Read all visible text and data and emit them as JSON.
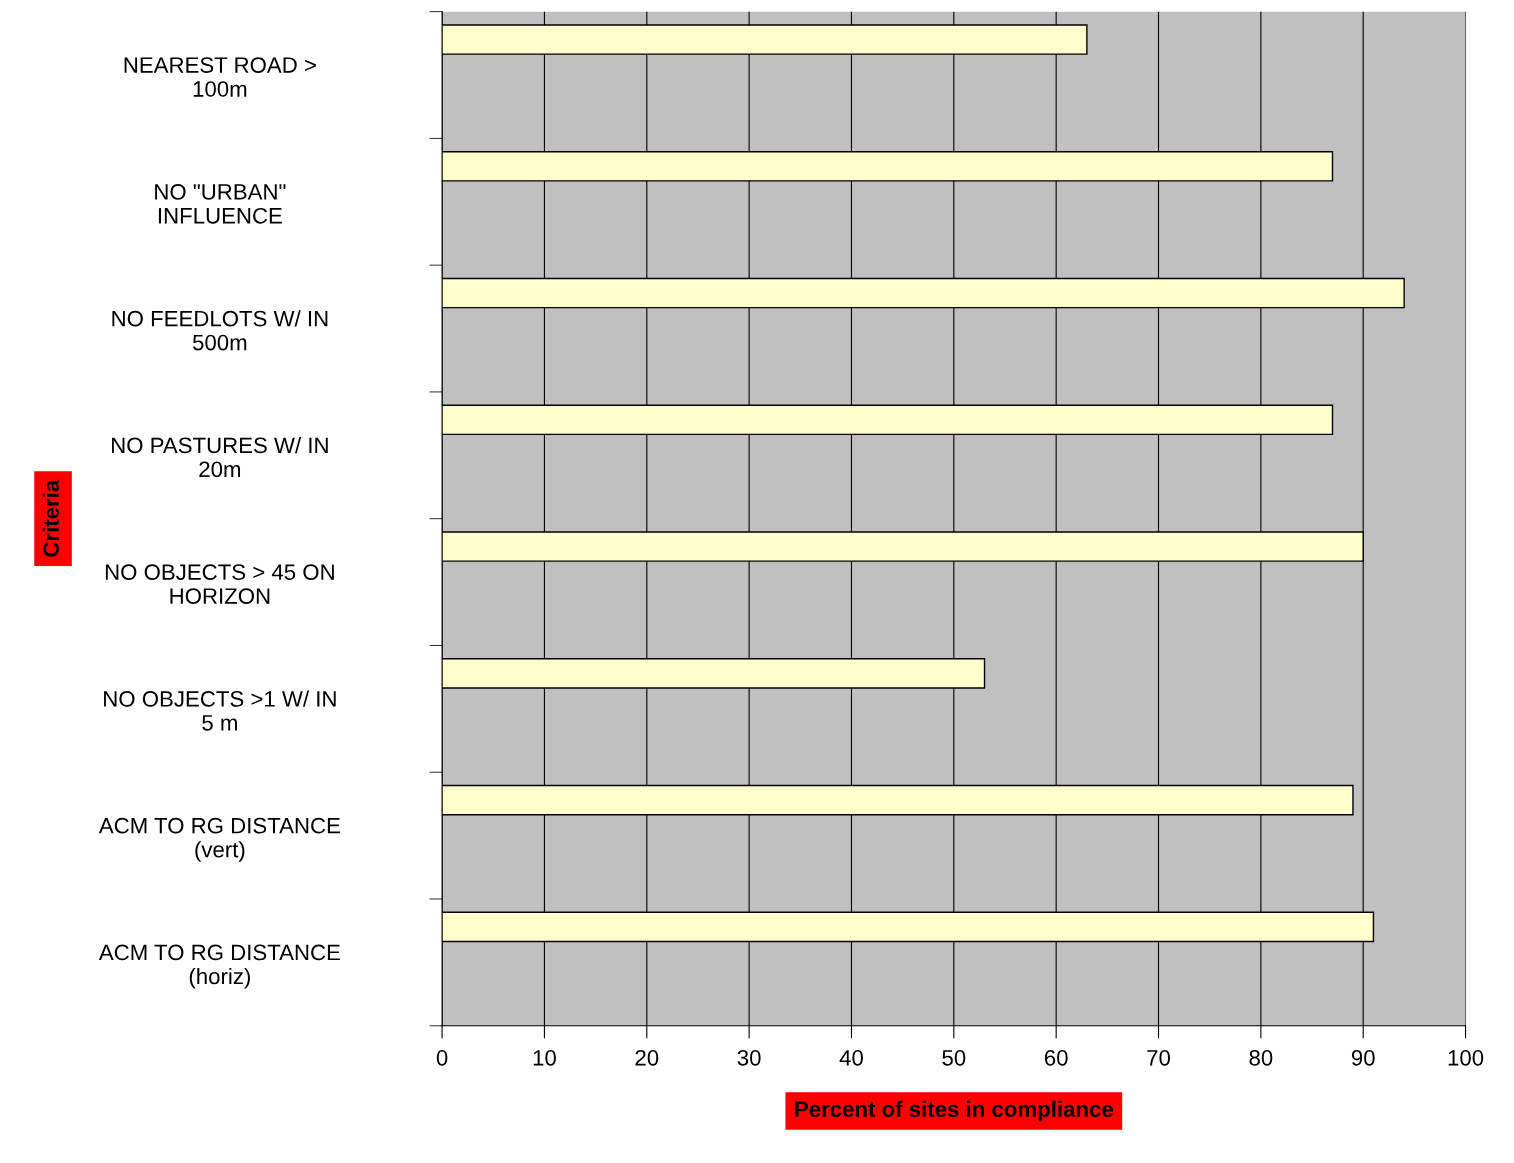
{
  "chart_data": {
    "type": "bar",
    "orientation": "horizontal",
    "categories": [
      "NEAREST ROAD >\n100m",
      "NO \"URBAN\"\nINFLUENCE",
      "NO FEEDLOTS W/ IN\n500m",
      "NO PASTURES W/ IN\n20m",
      "NO OBJECTS > 45 ON\nHORIZON",
      "NO OBJECTS >1 W/ IN\n5 m",
      "ACM TO RG DISTANCE\n(vert)",
      "ACM TO RG DISTANCE\n(horiz)"
    ],
    "values": [
      63,
      87,
      94,
      87,
      90,
      53,
      89,
      91
    ],
    "color": "#ffffcc",
    "xlabel": "Percent of sites in compliance",
    "ylabel": "Criteria",
    "xlim": [
      0,
      100
    ],
    "xticks": [
      0,
      10,
      20,
      30,
      40,
      50,
      60,
      70,
      80,
      90,
      100
    ],
    "grid": "x",
    "legend": false
  }
}
